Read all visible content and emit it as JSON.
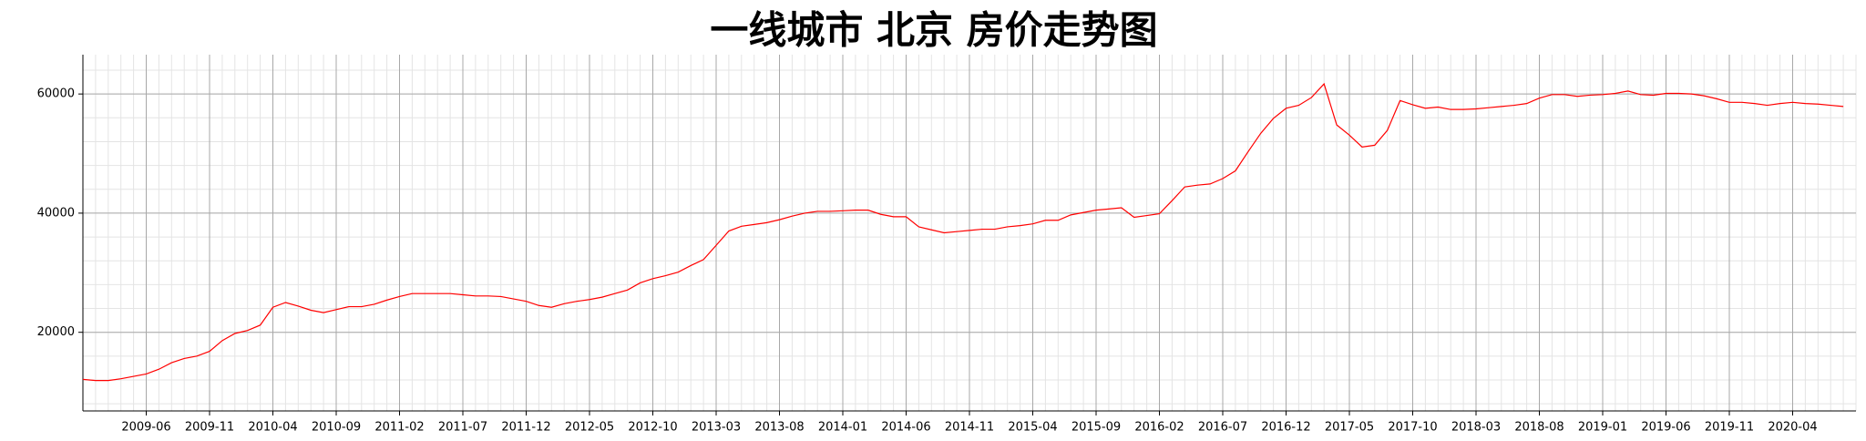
{
  "chart_data": {
    "type": "line",
    "title": "一线城市 北京 房价走势图",
    "x": [
      "2009-01",
      "2009-02",
      "2009-03",
      "2009-04",
      "2009-05",
      "2009-06",
      "2009-07",
      "2009-08",
      "2009-09",
      "2009-10",
      "2009-11",
      "2009-12",
      "2010-01",
      "2010-02",
      "2010-03",
      "2010-04",
      "2010-05",
      "2010-06",
      "2010-07",
      "2010-08",
      "2010-09",
      "2010-10",
      "2010-11",
      "2010-12",
      "2011-01",
      "2011-02",
      "2011-03",
      "2011-04",
      "2011-05",
      "2011-06",
      "2011-07",
      "2011-08",
      "2011-09",
      "2011-10",
      "2011-11",
      "2011-12",
      "2012-01",
      "2012-02",
      "2012-03",
      "2012-04",
      "2012-05",
      "2012-06",
      "2012-07",
      "2012-08",
      "2012-09",
      "2012-10",
      "2012-11",
      "2012-12",
      "2013-01",
      "2013-02",
      "2013-03",
      "2013-04",
      "2013-05",
      "2013-06",
      "2013-07",
      "2013-08",
      "2013-09",
      "2013-10",
      "2013-11",
      "2013-12",
      "2014-01",
      "2014-02",
      "2014-03",
      "2014-04",
      "2014-05",
      "2014-06",
      "2014-07",
      "2014-08",
      "2014-09",
      "2014-10",
      "2014-11",
      "2014-12",
      "2015-01",
      "2015-02",
      "2015-03",
      "2015-04",
      "2015-05",
      "2015-06",
      "2015-07",
      "2015-08",
      "2015-09",
      "2015-10",
      "2015-11",
      "2015-12",
      "2016-01",
      "2016-02",
      "2016-03",
      "2016-04",
      "2016-05",
      "2016-06",
      "2016-07",
      "2016-08",
      "2016-09",
      "2016-10",
      "2016-11",
      "2016-12",
      "2017-01",
      "2017-02",
      "2017-03",
      "2017-04",
      "2017-05",
      "2017-06",
      "2017-07",
      "2017-08",
      "2017-09",
      "2017-10",
      "2017-11",
      "2017-12",
      "2018-01",
      "2018-02",
      "2018-03",
      "2018-04",
      "2018-05",
      "2018-06",
      "2018-07",
      "2018-08",
      "2018-09",
      "2018-10",
      "2018-11",
      "2018-12",
      "2019-01",
      "2019-02",
      "2019-03",
      "2019-04",
      "2019-05",
      "2019-06",
      "2019-07",
      "2019-08",
      "2019-09",
      "2019-10",
      "2019-11",
      "2019-12",
      "2020-01",
      "2020-02",
      "2020-03",
      "2020-04",
      "2020-05",
      "2020-06",
      "2020-07",
      "2020-08"
    ],
    "series": [
      {
        "name": "北京",
        "color": "#ff0000",
        "values": [
          12100,
          11900,
          11900,
          12200,
          12600,
          13000,
          13800,
          14900,
          15600,
          16000,
          16800,
          18600,
          19800,
          20300,
          21200,
          24200,
          25000,
          24400,
          23700,
          23300,
          23800,
          24300,
          24300,
          24700,
          25400,
          26000,
          26500,
          26500,
          26500,
          26500,
          26300,
          26100,
          26100,
          26000,
          25600,
          25200,
          24500,
          24200,
          24800,
          25200,
          25500,
          25900,
          26500,
          27100,
          28300,
          29000,
          29500,
          30100,
          31200,
          32200,
          34600,
          37000,
          37800,
          38100,
          38400,
          38900,
          39500,
          40000,
          40300,
          40300,
          40400,
          40500,
          40500,
          39800,
          39400,
          39400,
          37700,
          37200,
          36700,
          36900,
          37100,
          37300,
          37300,
          37700,
          37900,
          38200,
          38800,
          38800,
          39700,
          40100,
          40500,
          40700,
          40900,
          39300,
          39600,
          39900,
          42100,
          44400,
          44700,
          44900,
          45800,
          47100,
          50300,
          53400,
          55900,
          57600,
          58100,
          59400,
          61700,
          54800,
          53100,
          51100,
          51400,
          53900,
          58900,
          58200,
          57600,
          57800,
          57400,
          57400,
          57500,
          57700,
          57900,
          58100,
          58400,
          59300,
          59900,
          59900,
          59600,
          59800,
          59900,
          60100,
          60500,
          59900,
          59800,
          60100,
          60100,
          60000,
          59700,
          59200,
          58600,
          58600,
          58400,
          58100,
          58400,
          58600,
          58400,
          58300,
          58100,
          57900
        ]
      }
    ],
    "xlim": [
      "2009-01",
      "2020-09"
    ],
    "xticks": [
      "2009-06",
      "2009-11",
      "2010-04",
      "2010-09",
      "2011-02",
      "2011-07",
      "2011-12",
      "2012-05",
      "2012-10",
      "2013-03",
      "2013-08",
      "2014-01",
      "2014-06",
      "2014-11",
      "2015-04",
      "2015-09",
      "2016-02",
      "2016-07",
      "2016-12",
      "2017-05",
      "2017-10",
      "2018-03",
      "2018-08",
      "2019-01",
      "2019-06",
      "2019-11",
      "2020-04"
    ],
    "ylim": [
      6800,
      66600
    ],
    "yticks": [
      20000,
      40000,
      60000
    ],
    "grid": true
  }
}
